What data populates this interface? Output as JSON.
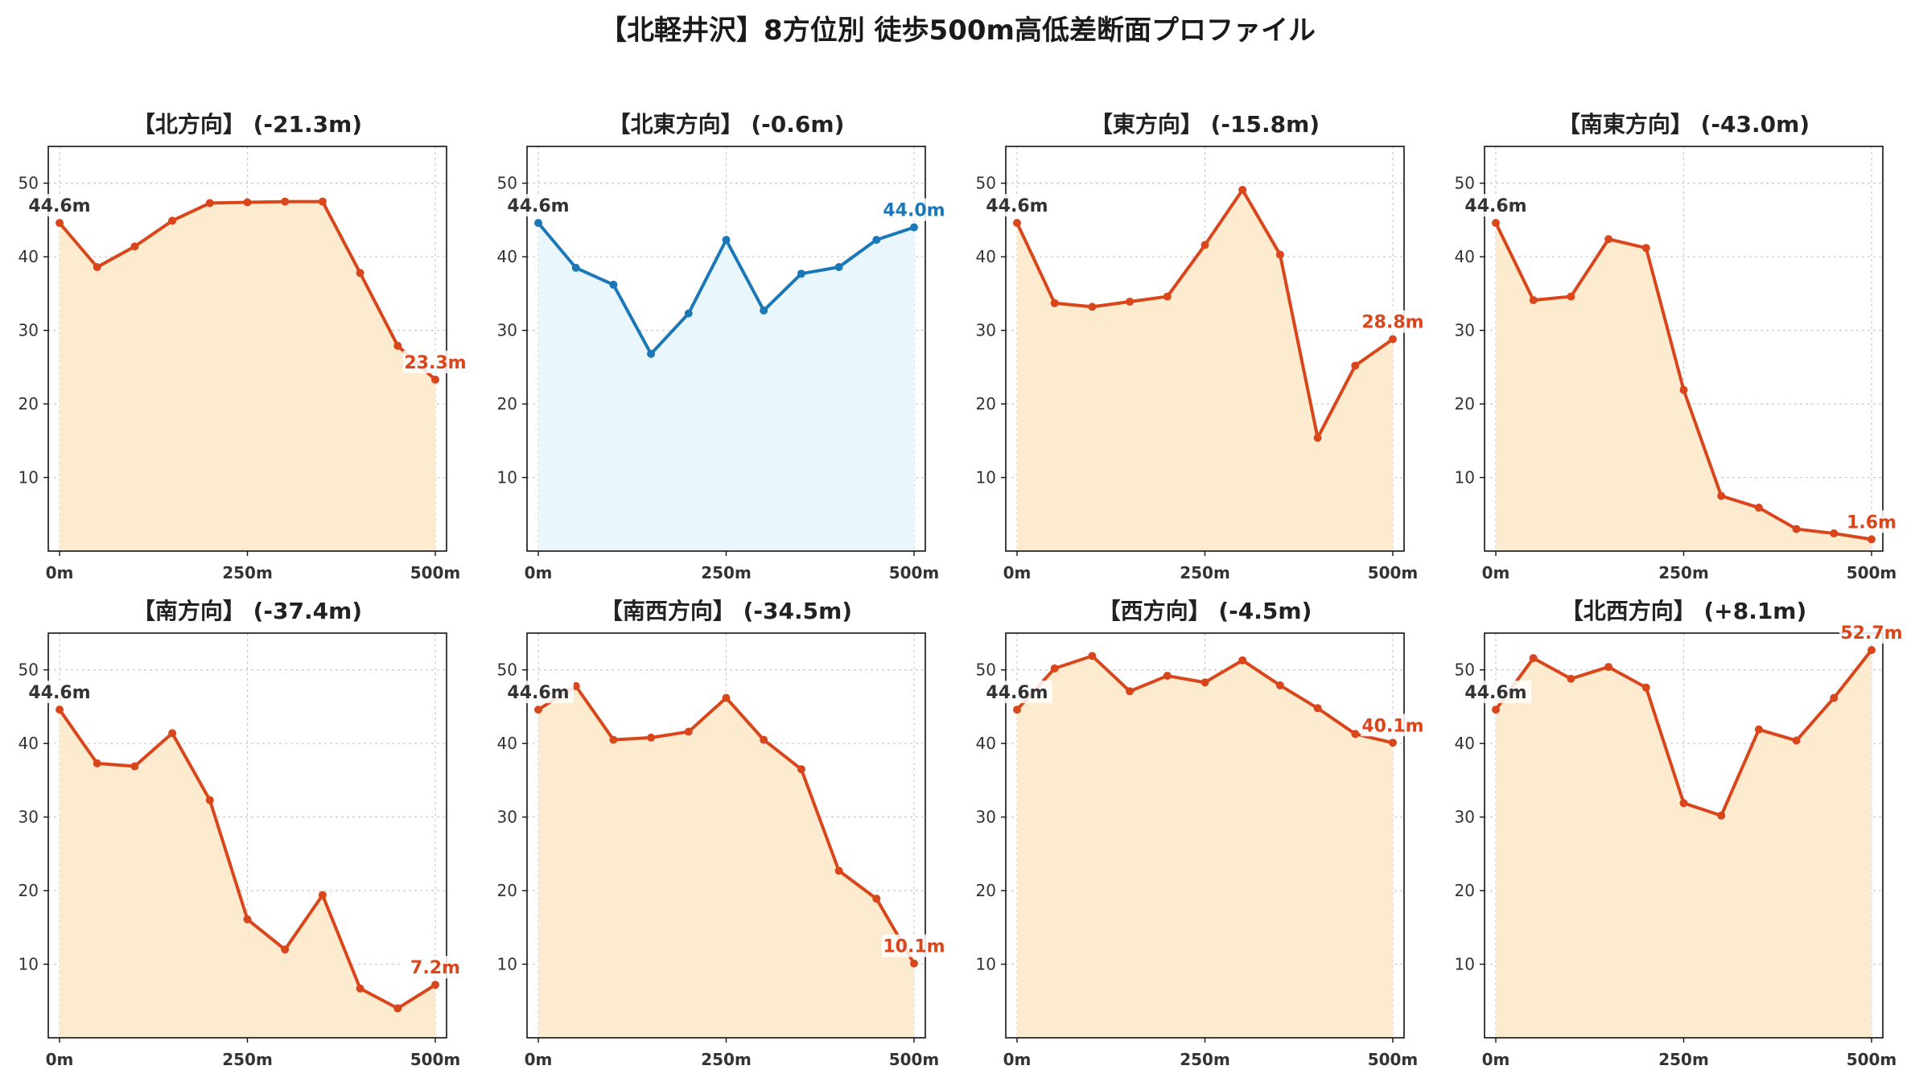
{
  "title": "【北軽井沢】8方位別 徒歩500m高低差断面プロファイル",
  "colors": {
    "down_line": "#d9461c",
    "down_fill": "#fdebd0",
    "up_line": "#1a78b8",
    "up_fill": "#e9f6fb",
    "grid": "#c8c8c8",
    "start_label": "#333333"
  },
  "chart_data": [
    {
      "type": "area",
      "title": "【北方向】 (-21.3m)",
      "theme": "down",
      "x": [
        0,
        50,
        100,
        150,
        200,
        250,
        300,
        350,
        400,
        450,
        500
      ],
      "values": [
        44.6,
        38.6,
        41.4,
        44.9,
        47.3,
        47.4,
        47.5,
        47.5,
        37.8,
        27.9,
        23.3
      ],
      "x_tick_labels": [
        "0m",
        "250m",
        "500m"
      ],
      "y_ticks": [
        10,
        20,
        30,
        40,
        50
      ],
      "xlim": [
        -15,
        515
      ],
      "ylim": [
        0,
        55
      ],
      "grid": true,
      "start_label": "44.6m",
      "end_label": "23.3m"
    },
    {
      "type": "area",
      "title": "【北東方向】 (-0.6m)",
      "theme": "up",
      "x": [
        0,
        50,
        100,
        150,
        200,
        250,
        300,
        350,
        400,
        450,
        500
      ],
      "values": [
        44.6,
        38.5,
        36.2,
        26.8,
        32.3,
        42.3,
        32.7,
        37.7,
        38.6,
        42.3,
        44.0
      ],
      "x_tick_labels": [
        "0m",
        "250m",
        "500m"
      ],
      "y_ticks": [
        10,
        20,
        30,
        40,
        50
      ],
      "xlim": [
        -15,
        515
      ],
      "ylim": [
        0,
        55
      ],
      "grid": true,
      "start_label": "44.6m",
      "end_label": "44.0m"
    },
    {
      "type": "area",
      "title": "【東方向】 (-15.8m)",
      "theme": "down",
      "x": [
        0,
        50,
        100,
        150,
        200,
        250,
        300,
        350,
        400,
        450,
        500
      ],
      "values": [
        44.6,
        33.7,
        33.2,
        33.9,
        34.6,
        41.6,
        49.1,
        40.3,
        15.4,
        25.2,
        28.8
      ],
      "x_tick_labels": [
        "0m",
        "250m",
        "500m"
      ],
      "y_ticks": [
        10,
        20,
        30,
        40,
        50
      ],
      "xlim": [
        -15,
        515
      ],
      "ylim": [
        0,
        55
      ],
      "grid": true,
      "start_label": "44.6m",
      "end_label": "28.8m"
    },
    {
      "type": "area",
      "title": "【南東方向】 (-43.0m)",
      "theme": "down",
      "x": [
        0,
        50,
        100,
        150,
        200,
        250,
        300,
        350,
        400,
        450,
        500
      ],
      "values": [
        44.6,
        34.1,
        34.6,
        42.4,
        41.2,
        21.9,
        7.5,
        5.9,
        3.0,
        2.4,
        1.6
      ],
      "x_tick_labels": [
        "0m",
        "250m",
        "500m"
      ],
      "y_ticks": [
        10,
        20,
        30,
        40,
        50
      ],
      "xlim": [
        -15,
        515
      ],
      "ylim": [
        0,
        55
      ],
      "grid": true,
      "start_label": "44.6m",
      "end_label": "1.6m"
    },
    {
      "type": "area",
      "title": "【南方向】 (-37.4m)",
      "theme": "down",
      "x": [
        0,
        50,
        100,
        150,
        200,
        250,
        300,
        350,
        400,
        450,
        500
      ],
      "values": [
        44.6,
        37.3,
        36.9,
        41.4,
        32.3,
        16.1,
        12.0,
        19.4,
        6.7,
        4.0,
        7.2
      ],
      "x_tick_labels": [
        "0m",
        "250m",
        "500m"
      ],
      "y_ticks": [
        10,
        20,
        30,
        40,
        50
      ],
      "xlim": [
        -15,
        515
      ],
      "ylim": [
        0,
        55
      ],
      "grid": true,
      "start_label": "44.6m",
      "end_label": "7.2m"
    },
    {
      "type": "area",
      "title": "【南西方向】 (-34.5m)",
      "theme": "down",
      "x": [
        0,
        50,
        100,
        150,
        200,
        250,
        300,
        350,
        400,
        450,
        500
      ],
      "values": [
        44.6,
        47.8,
        40.5,
        40.8,
        41.6,
        46.2,
        40.5,
        36.5,
        22.7,
        18.9,
        10.1
      ],
      "x_tick_labels": [
        "0m",
        "250m",
        "500m"
      ],
      "y_ticks": [
        10,
        20,
        30,
        40,
        50
      ],
      "xlim": [
        -15,
        515
      ],
      "ylim": [
        0,
        55
      ],
      "grid": true,
      "start_label": "44.6m",
      "end_label": "10.1m"
    },
    {
      "type": "area",
      "title": "【西方向】 (-4.5m)",
      "theme": "down",
      "x": [
        0,
        50,
        100,
        150,
        200,
        250,
        300,
        350,
        400,
        450,
        500
      ],
      "values": [
        44.6,
        50.2,
        51.9,
        47.1,
        49.2,
        48.3,
        51.3,
        47.9,
        44.8,
        41.3,
        40.1
      ],
      "x_tick_labels": [
        "0m",
        "250m",
        "500m"
      ],
      "y_ticks": [
        10,
        20,
        30,
        40,
        50
      ],
      "xlim": [
        -15,
        515
      ],
      "ylim": [
        0,
        55
      ],
      "grid": true,
      "start_label": "44.6m",
      "end_label": "40.1m"
    },
    {
      "type": "area",
      "title": "【北西方向】 (+8.1m)",
      "theme": "down",
      "x": [
        0,
        50,
        100,
        150,
        200,
        250,
        300,
        350,
        400,
        450,
        500
      ],
      "values": [
        44.6,
        51.6,
        48.8,
        50.4,
        47.6,
        31.9,
        30.2,
        41.9,
        40.4,
        46.2,
        52.7
      ],
      "x_tick_labels": [
        "0m",
        "250m",
        "500m"
      ],
      "y_ticks": [
        10,
        20,
        30,
        40,
        50
      ],
      "xlim": [
        -15,
        515
      ],
      "ylim": [
        0,
        55
      ],
      "grid": true,
      "start_label": "44.6m",
      "end_label": "52.7m"
    }
  ]
}
